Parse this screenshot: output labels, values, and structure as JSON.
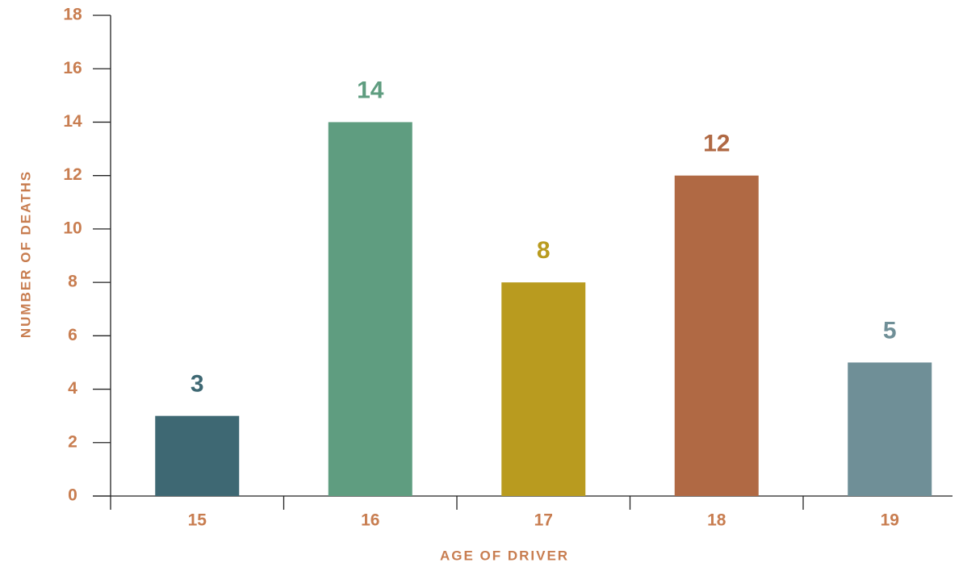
{
  "chart_data": {
    "type": "bar",
    "xlabel": "AGE OF DRIVER",
    "ylabel": "NUMBER OF DEATHS",
    "categories": [
      "15",
      "16",
      "17",
      "18",
      "19"
    ],
    "values": [
      3,
      14,
      8,
      12,
      5
    ],
    "colors": [
      "#3e6873",
      "#5f9d80",
      "#b99b1f",
      "#b06944",
      "#6f8f97"
    ],
    "ylim": [
      0,
      18
    ],
    "yticks": [
      0,
      2,
      4,
      6,
      8,
      10,
      12,
      14,
      16,
      18
    ],
    "grid": false
  }
}
